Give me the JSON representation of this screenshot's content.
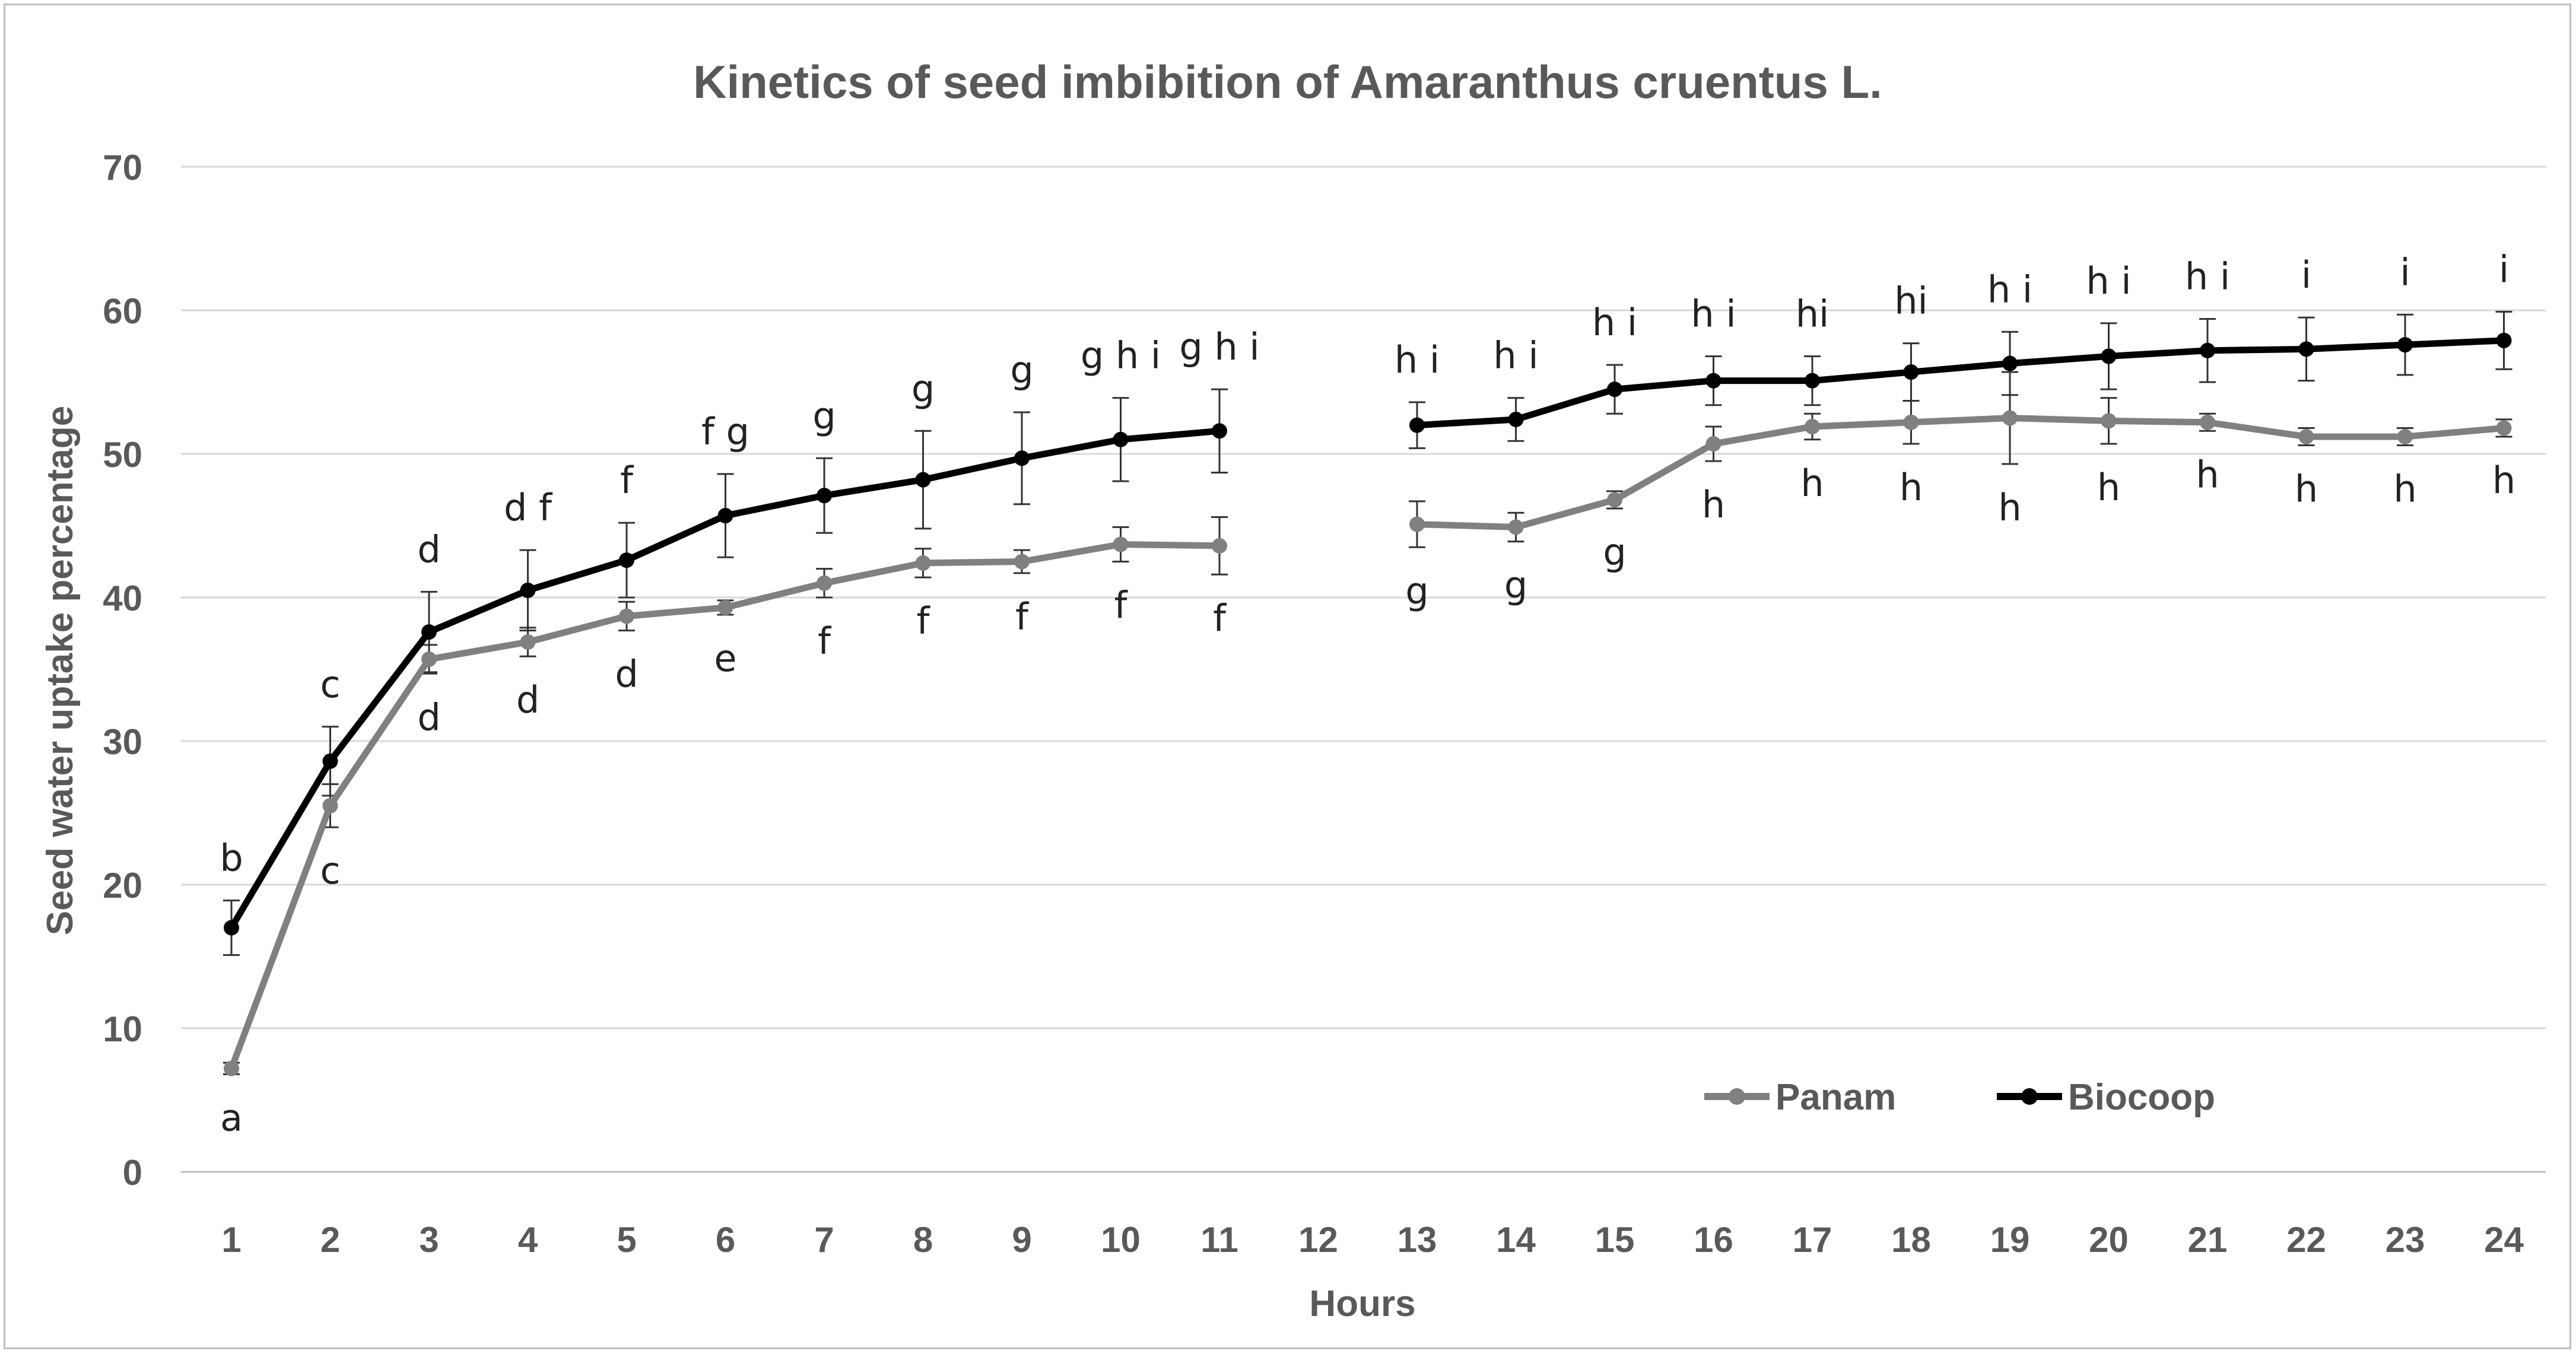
{
  "chart_data": {
    "type": "line",
    "title": "Kinetics of seed imbibition of Amaranthus cruentus L.",
    "xlabel": "Hours",
    "ylabel": "Seed water uptake percentage",
    "categories": [
      "1",
      "2",
      "3",
      "4",
      "5",
      "6",
      "7",
      "8",
      "9",
      "10",
      "11",
      "12",
      "13",
      "14",
      "15",
      "16",
      "17",
      "18",
      "19",
      "20",
      "21",
      "22",
      "23",
      "24"
    ],
    "ylim": [
      0,
      70
    ],
    "yticks": [
      0,
      10,
      20,
      30,
      40,
      50,
      60,
      70
    ],
    "grid": true,
    "legend_position": "bottom-right",
    "series": [
      {
        "name": "Panam",
        "color": "#808080",
        "values": [
          7.2,
          25.5,
          35.7,
          36.9,
          38.7,
          39.3,
          41.0,
          42.4,
          42.5,
          43.7,
          43.6,
          null,
          45.1,
          44.9,
          46.8,
          50.7,
          51.9,
          52.2,
          52.5,
          52.3,
          52.2,
          51.2,
          51.2,
          51.8
        ],
        "errors": [
          0.4,
          1.5,
          1.0,
          1.0,
          1.0,
          0.5,
          1.0,
          1.0,
          0.8,
          1.2,
          2.0,
          null,
          1.6,
          1.0,
          0.6,
          1.2,
          0.9,
          1.5,
          3.2,
          1.6,
          0.6,
          0.6,
          0.6,
          0.6
        ],
        "labels": [
          "a",
          "c",
          "d",
          "d",
          "d",
          "e",
          "f",
          "f",
          "f",
          "f",
          "f",
          "",
          "g",
          "g",
          "g",
          "h",
          "h",
          "h",
          "h",
          "h",
          "h",
          "h",
          "h",
          "h"
        ]
      },
      {
        "name": "Biocoop",
        "color": "#000000",
        "values": [
          17.0,
          28.6,
          37.6,
          40.5,
          42.6,
          45.7,
          47.1,
          48.2,
          49.7,
          51.0,
          51.6,
          null,
          52.0,
          52.4,
          54.5,
          55.1,
          55.1,
          55.7,
          56.3,
          56.8,
          57.2,
          57.3,
          57.6,
          57.9
        ],
        "errors": [
          1.9,
          2.4,
          2.8,
          2.8,
          2.6,
          2.9,
          2.6,
          3.4,
          3.2,
          2.9,
          2.9,
          null,
          1.6,
          1.5,
          1.7,
          1.7,
          1.7,
          2.0,
          2.2,
          2.3,
          2.2,
          2.2,
          2.1,
          2.0
        ],
        "labels": [
          "b",
          "c",
          "d",
          "d f",
          "f",
          "f g",
          "g",
          "g",
          "g",
          "g h i",
          "g h i",
          "",
          "h i",
          "h i",
          "h i",
          "h i",
          "hi",
          "hi",
          "h i",
          "h i",
          "h i",
          "i",
          "i",
          "i"
        ]
      }
    ]
  }
}
